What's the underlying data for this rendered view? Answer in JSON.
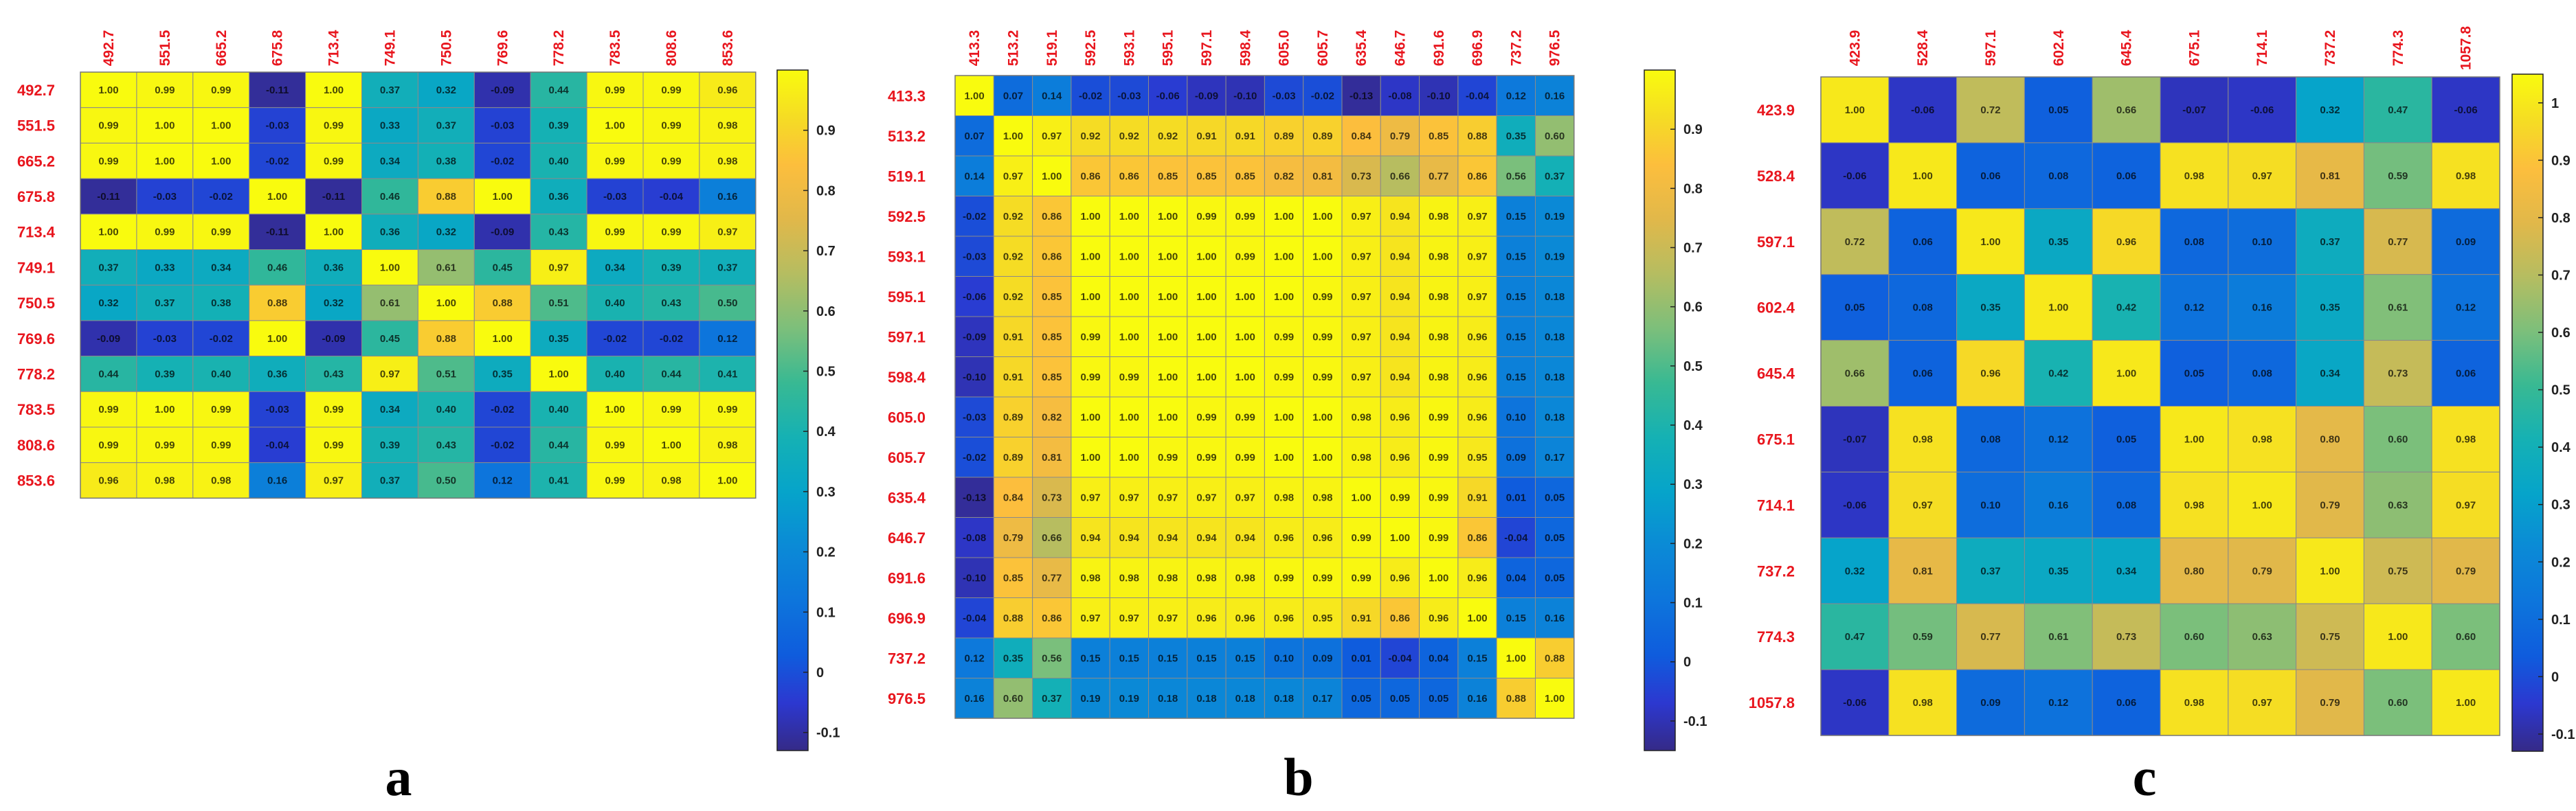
{
  "chart_data": [
    {
      "type": "heatmap",
      "panel_label": "a",
      "title": "",
      "colorbar": {
        "ticks": [
          -0.1,
          0,
          0.1,
          0.2,
          0.3,
          0.4,
          0.5,
          0.6,
          0.7,
          0.8,
          0.9
        ],
        "tick_labels": [
          "-0.1",
          "0",
          "0.1",
          "0.2",
          "0.3",
          "0.4",
          "0.5",
          "0.6",
          "0.7",
          "0.8",
          "0.9"
        ],
        "range": [
          -0.13,
          1.0
        ]
      },
      "labels": [
        "492.7",
        "551.5",
        "665.2",
        "675.8",
        "713.4",
        "749.1",
        "750.5",
        "769.6",
        "778.2",
        "783.5",
        "808.6",
        "853.6"
      ],
      "matrix": [
        [
          "1.00",
          "0.99",
          "0.99",
          "-0.11",
          "1.00",
          "0.37",
          "0.32",
          "-0.09",
          "0.44",
          "0.99",
          "0.99",
          "0.96"
        ],
        [
          "0.99",
          "1.00",
          "1.00",
          "-0.03",
          "0.99",
          "0.33",
          "0.37",
          "-0.03",
          "0.39",
          "1.00",
          "0.99",
          "0.98"
        ],
        [
          "0.99",
          "1.00",
          "1.00",
          "-0.02",
          "0.99",
          "0.34",
          "0.38",
          "-0.02",
          "0.40",
          "0.99",
          "0.99",
          "0.98"
        ],
        [
          "-0.11",
          "-0.03",
          "-0.02",
          "1.00",
          "-0.11",
          "0.46",
          "0.88",
          "1.00",
          "0.36",
          "-0.03",
          "-0.04",
          "0.16"
        ],
        [
          "1.00",
          "0.99",
          "0.99",
          "-0.11",
          "1.00",
          "0.36",
          "0.32",
          "-0.09",
          "0.43",
          "0.99",
          "0.99",
          "0.97"
        ],
        [
          "0.37",
          "0.33",
          "0.34",
          "0.46",
          "0.36",
          "1.00",
          "0.61",
          "0.45",
          "0.97",
          "0.34",
          "0.39",
          "0.37"
        ],
        [
          "0.32",
          "0.37",
          "0.38",
          "0.88",
          "0.32",
          "0.61",
          "1.00",
          "0.88",
          "0.51",
          "0.40",
          "0.43",
          "0.50"
        ],
        [
          "-0.09",
          "-0.03",
          "-0.02",
          "1.00",
          "-0.09",
          "0.45",
          "0.88",
          "1.00",
          "0.35",
          "-0.02",
          "-0.02",
          "0.12"
        ],
        [
          "0.44",
          "0.39",
          "0.40",
          "0.36",
          "0.43",
          "0.97",
          "0.51",
          "0.35",
          "1.00",
          "0.40",
          "0.44",
          "0.41"
        ],
        [
          "0.99",
          "1.00",
          "0.99",
          "-0.03",
          "0.99",
          "0.34",
          "0.40",
          "-0.02",
          "0.40",
          "1.00",
          "0.99",
          "0.99"
        ],
        [
          "0.99",
          "0.99",
          "0.99",
          "-0.04",
          "0.99",
          "0.39",
          "0.43",
          "-0.02",
          "0.44",
          "0.99",
          "1.00",
          "0.98"
        ],
        [
          "0.96",
          "0.98",
          "0.98",
          "0.16",
          "0.97",
          "0.37",
          "0.50",
          "0.12",
          "0.41",
          "0.99",
          "0.98",
          "1.00"
        ]
      ]
    },
    {
      "type": "heatmap",
      "panel_label": "b",
      "title": "",
      "colorbar": {
        "ticks": [
          -0.1,
          0,
          0.1,
          0.2,
          0.3,
          0.4,
          0.5,
          0.6,
          0.7,
          0.8,
          0.9
        ],
        "tick_labels": [
          "-0.1",
          "0",
          "0.1",
          "0.2",
          "0.3",
          "0.4",
          "0.5",
          "0.6",
          "0.7",
          "0.8",
          "0.9"
        ],
        "range": [
          -0.15,
          1.0
        ]
      },
      "labels": [
        "413.3",
        "513.2",
        "519.1",
        "592.5",
        "593.1",
        "595.1",
        "597.1",
        "598.4",
        "605.0",
        "605.7",
        "635.4",
        "646.7",
        "691.6",
        "696.9",
        "737.2",
        "976.5"
      ],
      "matrix": [
        [
          "1.00",
          "0.07",
          "0.14",
          "-0.02",
          "-0.03",
          "-0.06",
          "-0.09",
          "-0.10",
          "-0.03",
          "-0.02",
          "-0.13",
          "-0.08",
          "-0.10",
          "-0.04",
          "0.12",
          "0.16"
        ],
        [
          "0.07",
          "1.00",
          "0.97",
          "0.92",
          "0.92",
          "0.92",
          "0.91",
          "0.91",
          "0.89",
          "0.89",
          "0.84",
          "0.79",
          "0.85",
          "0.88",
          "0.35",
          "0.60"
        ],
        [
          "0.14",
          "0.97",
          "1.00",
          "0.86",
          "0.86",
          "0.85",
          "0.85",
          "0.85",
          "0.82",
          "0.81",
          "0.73",
          "0.66",
          "0.77",
          "0.86",
          "0.56",
          "0.37"
        ],
        [
          "-0.02",
          "0.92",
          "0.86",
          "1.00",
          "1.00",
          "1.00",
          "0.99",
          "0.99",
          "1.00",
          "1.00",
          "0.97",
          "0.94",
          "0.98",
          "0.97",
          "0.15",
          "0.19"
        ],
        [
          "-0.03",
          "0.92",
          "0.86",
          "1.00",
          "1.00",
          "1.00",
          "1.00",
          "0.99",
          "1.00",
          "1.00",
          "0.97",
          "0.94",
          "0.98",
          "0.97",
          "0.15",
          "0.19"
        ],
        [
          "-0.06",
          "0.92",
          "0.85",
          "1.00",
          "1.00",
          "1.00",
          "1.00",
          "1.00",
          "1.00",
          "0.99",
          "0.97",
          "0.94",
          "0.98",
          "0.97",
          "0.15",
          "0.18"
        ],
        [
          "-0.09",
          "0.91",
          "0.85",
          "0.99",
          "1.00",
          "1.00",
          "1.00",
          "1.00",
          "0.99",
          "0.99",
          "0.97",
          "0.94",
          "0.98",
          "0.96",
          "0.15",
          "0.18"
        ],
        [
          "-0.10",
          "0.91",
          "0.85",
          "0.99",
          "0.99",
          "1.00",
          "1.00",
          "1.00",
          "0.99",
          "0.99",
          "0.97",
          "0.94",
          "0.98",
          "0.96",
          "0.15",
          "0.18"
        ],
        [
          "-0.03",
          "0.89",
          "0.82",
          "1.00",
          "1.00",
          "1.00",
          "0.99",
          "0.99",
          "1.00",
          "1.00",
          "0.98",
          "0.96",
          "0.99",
          "0.96",
          "0.10",
          "0.18"
        ],
        [
          "-0.02",
          "0.89",
          "0.81",
          "1.00",
          "1.00",
          "0.99",
          "0.99",
          "0.99",
          "1.00",
          "1.00",
          "0.98",
          "0.96",
          "0.99",
          "0.95",
          "0.09",
          "0.17"
        ],
        [
          "-0.13",
          "0.84",
          "0.73",
          "0.97",
          "0.97",
          "0.97",
          "0.97",
          "0.97",
          "0.98",
          "0.98",
          "1.00",
          "0.99",
          "0.99",
          "0.91",
          "0.01",
          "0.05"
        ],
        [
          "-0.08",
          "0.79",
          "0.66",
          "0.94",
          "0.94",
          "0.94",
          "0.94",
          "0.94",
          "0.96",
          "0.96",
          "0.99",
          "1.00",
          "0.99",
          "0.86",
          "-0.04",
          "0.05"
        ],
        [
          "-0.10",
          "0.85",
          "0.77",
          "0.98",
          "0.98",
          "0.98",
          "0.98",
          "0.98",
          "0.99",
          "0.99",
          "0.99",
          "0.96",
          "1.00",
          "0.96",
          "0.04",
          "0.05"
        ],
        [
          "-0.04",
          "0.88",
          "0.86",
          "0.97",
          "0.97",
          "0.97",
          "0.96",
          "0.96",
          "0.96",
          "0.95",
          "0.91",
          "0.86",
          "0.96",
          "1.00",
          "0.15",
          "0.16"
        ],
        [
          "0.12",
          "0.35",
          "0.56",
          "0.15",
          "0.15",
          "0.15",
          "0.15",
          "0.15",
          "0.10",
          "0.09",
          "0.01",
          "-0.04",
          "0.04",
          "0.15",
          "1.00",
          "0.88"
        ],
        [
          "0.16",
          "0.60",
          "0.37",
          "0.19",
          "0.19",
          "0.18",
          "0.18",
          "0.18",
          "0.18",
          "0.17",
          "0.05",
          "0.05",
          "0.05",
          "0.16",
          "0.88",
          "1.00"
        ]
      ]
    },
    {
      "type": "heatmap",
      "panel_label": "c",
      "title": "",
      "colorbar": {
        "ticks": [
          -0.1,
          0,
          0.1,
          0.2,
          0.3,
          0.4,
          0.5,
          0.6,
          0.7,
          0.8,
          0.9,
          1
        ],
        "tick_labels": [
          "-0.1",
          "0",
          "0.1",
          "0.2",
          "0.3",
          "0.4",
          "0.5",
          "0.6",
          "0.7",
          "0.8",
          "0.9",
          "1"
        ],
        "range": [
          -0.13,
          1.05
        ]
      },
      "labels": [
        "423.9",
        "528.4",
        "597.1",
        "602.4",
        "645.4",
        "675.1",
        "714.1",
        "737.2",
        "774.3",
        "1057.8"
      ],
      "matrix": [
        [
          "1.00",
          "-0.06",
          "0.72",
          "0.05",
          "0.66",
          "-0.07",
          "-0.06",
          "0.32",
          "0.47",
          "-0.06"
        ],
        [
          "-0.06",
          "1.00",
          "0.06",
          "0.08",
          "0.06",
          "0.98",
          "0.97",
          "0.81",
          "0.59",
          "0.98"
        ],
        [
          "0.72",
          "0.06",
          "1.00",
          "0.35",
          "0.96",
          "0.08",
          "0.10",
          "0.37",
          "0.77",
          "0.09"
        ],
        [
          "0.05",
          "0.08",
          "0.35",
          "1.00",
          "0.42",
          "0.12",
          "0.16",
          "0.35",
          "0.61",
          "0.12"
        ],
        [
          "0.66",
          "0.06",
          "0.96",
          "0.42",
          "1.00",
          "0.05",
          "0.08",
          "0.34",
          "0.73",
          "0.06"
        ],
        [
          "-0.07",
          "0.98",
          "0.08",
          "0.12",
          "0.05",
          "1.00",
          "0.98",
          "0.80",
          "0.60",
          "0.98"
        ],
        [
          "-0.06",
          "0.97",
          "0.10",
          "0.16",
          "0.08",
          "0.98",
          "1.00",
          "0.79",
          "0.63",
          "0.97"
        ],
        [
          "0.32",
          "0.81",
          "0.37",
          "0.35",
          "0.34",
          "0.80",
          "0.79",
          "1.00",
          "0.75",
          "0.79"
        ],
        [
          "0.47",
          "0.59",
          "0.77",
          "0.61",
          "0.73",
          "0.60",
          "0.63",
          "0.75",
          "1.00",
          "0.60"
        ],
        [
          "-0.06",
          "0.98",
          "0.09",
          "0.12",
          "0.06",
          "0.98",
          "0.97",
          "0.79",
          "0.60",
          "1.00"
        ]
      ]
    }
  ]
}
